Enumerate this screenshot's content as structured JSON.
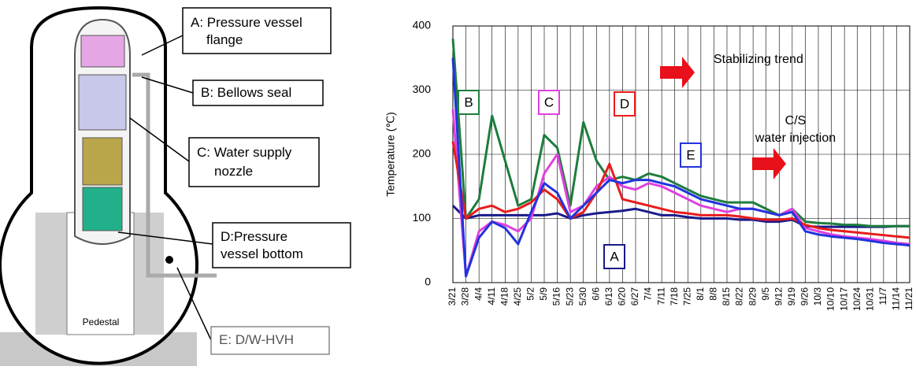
{
  "diagram": {
    "callouts": [
      {
        "lines": [
          "A: Pressure vessel",
          "flange"
        ]
      },
      {
        "lines": [
          "B: Bellows seal"
        ]
      },
      {
        "lines": [
          "C: Water supply",
          "nozzle"
        ]
      },
      {
        "lines": [
          "D:Pressure",
          "vessel bottom"
        ]
      },
      {
        "lines": [
          "E: D/W-HVH"
        ]
      }
    ],
    "pedestal": "Pedestal"
  },
  "chart_data": {
    "type": "line",
    "y_label": "Temperature (℃)",
    "annotations": [
      {
        "lines": [
          "Stabilizing trend"
        ]
      },
      {
        "lines": [
          "C/S",
          "water injection"
        ]
      }
    ],
    "categories": [
      "3/21",
      "3/28",
      "4/4",
      "4/11",
      "4/18",
      "4/25",
      "5/2",
      "5/9",
      "5/16",
      "5/23",
      "5/30",
      "6/6",
      "6/13",
      "6/20",
      "6/27",
      "7/4",
      "7/11",
      "7/18",
      "7/25",
      "8/1",
      "8/8",
      "8/15",
      "8/22",
      "8/29",
      "9/5",
      "9/12",
      "9/19",
      "9/26",
      "10/3",
      "10/10",
      "10/17",
      "10/24",
      "10/31",
      "11/7",
      "11/14",
      "11/21"
    ],
    "ylim": [
      0,
      400
    ],
    "yticks": [
      0,
      100,
      200,
      300,
      400
    ],
    "grid": true,
    "series": [
      {
        "name": "A",
        "color": "#1a1a8c",
        "values": [
          120,
          100,
          105,
          105,
          105,
          105,
          105,
          105,
          108,
          100,
          105,
          108,
          110,
          112,
          115,
          110,
          105,
          105,
          102,
          100,
          100,
          100,
          98,
          98,
          95,
          95,
          98,
          88,
          87,
          87,
          87,
          87,
          87,
          87,
          88,
          88
        ]
      },
      {
        "name": "B",
        "color": "#1e7d3c",
        "values": [
          380,
          100,
          130,
          260,
          190,
          120,
          130,
          230,
          210,
          120,
          250,
          190,
          160,
          165,
          160,
          170,
          165,
          155,
          145,
          135,
          130,
          125,
          125,
          125,
          115,
          105,
          115,
          95,
          93,
          92,
          90,
          90,
          88,
          88,
          88,
          88
        ]
      },
      {
        "name": "C",
        "color": "#e040e0",
        "values": [
          270,
          10,
          80,
          95,
          90,
          80,
          100,
          170,
          200,
          110,
          120,
          150,
          165,
          150,
          145,
          155,
          150,
          140,
          130,
          120,
          115,
          110,
          115,
          115,
          110,
          105,
          115,
          85,
          80,
          75,
          72,
          70,
          68,
          65,
          62,
          60
        ]
      },
      {
        "name": "D",
        "color": "#e81c1c",
        "values": [
          220,
          100,
          115,
          120,
          110,
          115,
          125,
          145,
          130,
          100,
          110,
          140,
          185,
          130,
          125,
          120,
          115,
          110,
          108,
          105,
          105,
          105,
          103,
          100,
          98,
          98,
          100,
          90,
          85,
          82,
          80,
          78,
          76,
          74,
          72,
          70
        ]
      },
      {
        "name": "E",
        "color": "#2233dd",
        "values": [
          350,
          10,
          70,
          95,
          85,
          60,
          110,
          155,
          140,
          100,
          120,
          140,
          160,
          155,
          160,
          160,
          155,
          150,
          140,
          130,
          125,
          120,
          115,
          115,
          110,
          105,
          110,
          80,
          75,
          72,
          70,
          68,
          65,
          62,
          60,
          58
        ]
      }
    ]
  }
}
